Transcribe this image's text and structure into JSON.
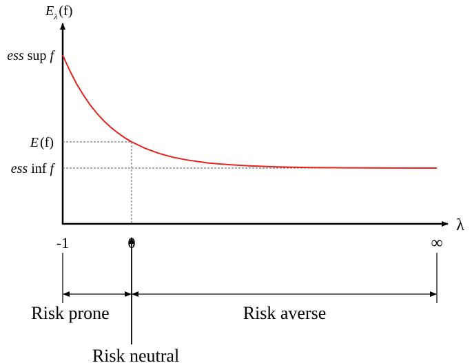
{
  "y_axis_label": {
    "symbol": "E",
    "subscript": "λ",
    "argument": "(f)"
  },
  "x_axis_label": "λ",
  "levels": {
    "ess_sup": [
      "ess",
      "sup",
      "f"
    ],
    "expectation": [
      "E",
      "(f)"
    ],
    "ess_inf": [
      "ess",
      "inf",
      "f"
    ]
  },
  "x_ticks": [
    "-1",
    "0",
    "∞"
  ],
  "regions": {
    "risk_prone": "Risk prone",
    "risk_averse": "Risk averse",
    "risk_neutral": "Risk neutral"
  }
}
